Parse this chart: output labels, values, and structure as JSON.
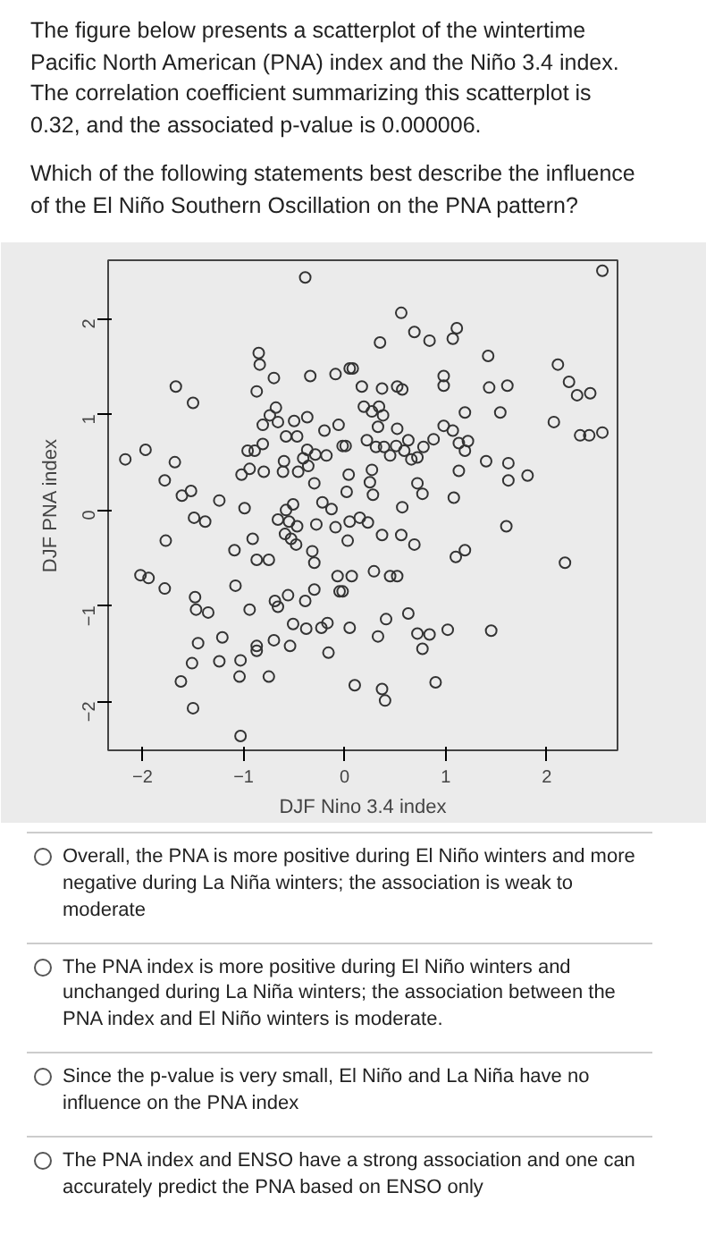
{
  "chart_data": {
    "type": "scatter",
    "title": "The figure below presents a scatterplot of the wintertime Pacific North American (PNA) index and the Niño 3.4 index. The correlation coefficient summarizing this scatterplot is 0.32, and the associated p-value is 0.000006.",
    "subtitle": "Which of the following statements best describe the influence of the El Niño Southern Oscillation on the PNA pattern?",
    "xlabel": "DJF Nino 3.4 index",
    "ylabel": "DJF PNA index",
    "xlim": [
      -2.34,
      2.7
    ],
    "ylim": [
      -2.51,
      2.61
    ],
    "xticks": [
      -2,
      -1,
      0,
      1,
      2
    ],
    "yticks": [
      -2,
      -1,
      0,
      1,
      2
    ],
    "grid": false,
    "marker": "circle",
    "annotations": [
      "Overall, the PNA is more positive during El Niño winters and more negative during La Niña winters; the association is weak to moderate",
      "The PNA index is more positive during El Niño winters and unchanged during La Niña winters; the association between the PNA index and El Niño winters is moderate.",
      "Since the p-value is very small, El Niño and La Niña have no influence on the PNA index",
      "The PNA index and ENSO have a strong association and one can accurately predict the PNA based on ENSO only"
    ],
    "series": [
      {
        "color": "#333333",
        "x": [
          -0.39,
          -0.85,
          -0.84,
          -0.7,
          -0.34,
          -0.09,
          0.08,
          -1.67,
          -1.5,
          -0.87,
          -0.68,
          -0.74,
          -0.81,
          -0.66,
          -0.5,
          -0.37,
          -0.58,
          -0.47,
          -0.2,
          -0.06,
          -0.96,
          -0.89,
          -0.81,
          -0.37,
          -0.29,
          -0.18,
          0.01,
          -2.17,
          -1.97,
          -1.68,
          -1.78,
          -1.02,
          -0.94,
          -0.8,
          -0.6,
          -0.61,
          -0.46,
          -0.36,
          -0.41,
          -0.3,
          -1.52,
          -1.61,
          -1.24,
          -0.99,
          -0.22,
          -0.13,
          -0.51,
          -0.58,
          -0.66,
          -0.55,
          -0.47,
          -1.49,
          -1.38,
          -0.28,
          -0.09,
          -0.59,
          -0.53,
          -0.48,
          -1.77,
          -0.91,
          -1.09,
          -0.87,
          -0.75,
          -0.32,
          -0.3,
          -0.07,
          -0.02,
          -2.02,
          -1.94,
          -1.78,
          -1.48,
          -1.47,
          -1.35,
          -1.08,
          -0.94,
          -0.69,
          -0.66,
          -0.56,
          -0.39,
          -0.3,
          -0.51,
          -0.38,
          -0.23,
          -0.17,
          -0.16,
          -0.7,
          -0.87,
          -0.87,
          -0.54,
          -1.21,
          -1.45,
          -1.24,
          -1.03,
          -1.04,
          -1.51,
          -1.62,
          -0.75,
          -1.5,
          -1.03,
          0.56,
          0.35,
          0.69,
          0.84,
          1.07,
          1.11,
          2.55,
          1.42,
          2.11,
          2.22,
          2.3,
          2.43,
          0.05,
          0.17,
          0.37,
          0.52,
          0.57,
          0.98,
          0.98,
          1.43,
          1.61,
          1.54,
          1.19,
          0.19,
          0.27,
          0.34,
          0.38,
          0.33,
          0.52,
          0.22,
          0.31,
          0.39,
          0.45,
          0.51,
          0.59,
          0.63,
          0.66,
          0.72,
          0.78,
          0.88,
          0.98,
          1.07,
          1.13,
          1.19,
          1.22,
          2.07,
          2.33,
          2.42,
          2.55,
          -0.02,
          1.4,
          1.62,
          1.62,
          1.81,
          1.13,
          0.04,
          0.27,
          0.25,
          0.28,
          0.02,
          0.72,
          0.77,
          1.08,
          0.57,
          0.05,
          0.15,
          0.23,
          0.03,
          0.37,
          0.56,
          0.69,
          1.1,
          1.19,
          1.6,
          2.18,
          0.29,
          0.45,
          0.52,
          0.07,
          -0.05,
          0.63,
          0.41,
          0.05,
          0.33,
          0.72,
          0.84,
          0.77,
          1.02,
          1.45,
          0.1,
          0.37,
          0.4,
          0.9
        ],
        "values": [
          2.43,
          1.64,
          1.52,
          1.38,
          1.4,
          1.42,
          1.48,
          1.29,
          1.12,
          1.24,
          1.07,
          0.99,
          0.89,
          0.92,
          0.93,
          0.97,
          0.77,
          0.77,
          0.83,
          0.89,
          0.62,
          0.62,
          0.69,
          0.63,
          0.58,
          0.57,
          0.67,
          0.53,
          0.63,
          0.5,
          0.31,
          0.37,
          0.43,
          0.4,
          0.51,
          0.4,
          0.4,
          0.46,
          0.54,
          0.28,
          0.2,
          0.15,
          0.1,
          0.02,
          0.08,
          0.01,
          0.06,
          0.0,
          -0.1,
          -0.12,
          -0.17,
          -0.08,
          -0.12,
          -0.15,
          -0.18,
          -0.25,
          -0.3,
          -0.36,
          -0.32,
          -0.3,
          -0.42,
          -0.52,
          -0.52,
          -0.43,
          -0.55,
          -0.69,
          -0.85,
          -0.68,
          -0.71,
          -0.82,
          -0.91,
          -1.04,
          -1.07,
          -0.79,
          -1.04,
          -0.95,
          -1.01,
          -0.89,
          -0.95,
          -0.83,
          -1.19,
          -1.24,
          -1.23,
          -1.18,
          -1.49,
          -1.36,
          -1.42,
          -1.47,
          -1.42,
          -1.33,
          -1.39,
          -1.58,
          -1.57,
          -1.74,
          -1.6,
          -1.79,
          -1.74,
          -2.07,
          -2.36,
          2.06,
          1.75,
          1.86,
          1.77,
          1.79,
          1.9,
          2.5,
          1.61,
          1.52,
          1.34,
          1.2,
          1.22,
          1.48,
          1.29,
          1.27,
          1.29,
          1.26,
          1.4,
          1.3,
          1.28,
          1.3,
          1.02,
          1.02,
          1.08,
          1.03,
          1.08,
          0.99,
          0.87,
          0.85,
          0.73,
          0.66,
          0.66,
          0.57,
          0.67,
          0.62,
          0.73,
          0.53,
          0.55,
          0.66,
          0.74,
          0.88,
          0.83,
          0.7,
          0.62,
          0.72,
          0.92,
          0.78,
          0.78,
          0.81,
          0.67,
          0.51,
          0.49,
          0.31,
          0.36,
          0.41,
          0.37,
          0.42,
          0.29,
          0.16,
          0.19,
          0.28,
          0.17,
          0.13,
          0.03,
          -0.12,
          -0.08,
          -0.13,
          -0.32,
          -0.26,
          -0.26,
          -0.36,
          -0.49,
          -0.42,
          -0.17,
          -0.55,
          -0.64,
          -0.69,
          -0.69,
          -0.69,
          -0.85,
          -1.08,
          -1.14,
          -1.23,
          -1.32,
          -1.29,
          -1.3,
          -1.45,
          -1.25,
          -1.26,
          -1.83,
          -1.87,
          -1.99,
          -1.8
        ]
      }
    ]
  }
}
